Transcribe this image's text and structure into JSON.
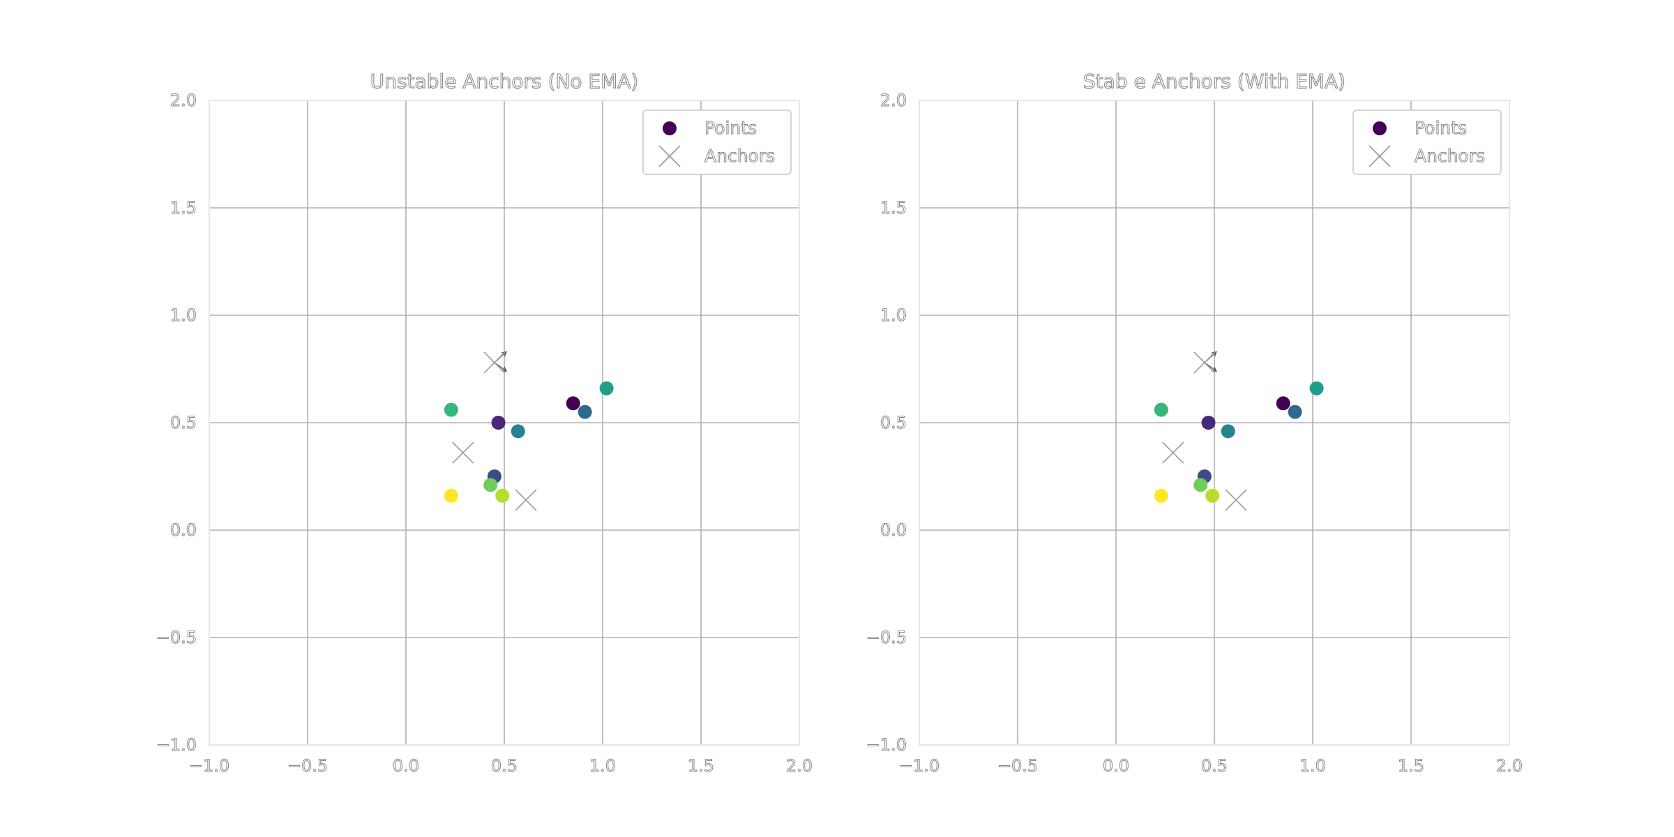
{
  "chart_data": [
    {
      "type": "scatter",
      "title": "Unstable Anchors (No EMA)",
      "xlim": [
        -1.0,
        2.0
      ],
      "ylim": [
        -1.0,
        2.0
      ],
      "x_ticks": [
        "−1.0",
        "−0.5",
        "0.0",
        "0.5",
        "1.0",
        "1.5",
        "2.0"
      ],
      "y_ticks": [
        "−1.0",
        "−0.5",
        "0.0",
        "0.5",
        "1.0",
        "1.5",
        "2.0"
      ],
      "grid": true,
      "legend": {
        "position": "top-right",
        "entries": [
          "Points",
          "Anchors"
        ]
      },
      "series": [
        {
          "name": "Points",
          "marker": "circle",
          "colormap": "viridis",
          "points": [
            {
              "x": 0.85,
              "y": 0.59,
              "color": "#440154"
            },
            {
              "x": 0.47,
              "y": 0.5,
              "color": "#482878"
            },
            {
              "x": 0.45,
              "y": 0.25,
              "color": "#3e4a89"
            },
            {
              "x": 0.91,
              "y": 0.55,
              "color": "#31688e"
            },
            {
              "x": 0.57,
              "y": 0.46,
              "color": "#26828e"
            },
            {
              "x": 1.02,
              "y": 0.66,
              "color": "#1f9e89"
            },
            {
              "x": 0.23,
              "y": 0.56,
              "color": "#35b779"
            },
            {
              "x": 0.43,
              "y": 0.21,
              "color": "#6ece58"
            },
            {
              "x": 0.49,
              "y": 0.16,
              "color": "#b5de2b"
            },
            {
              "x": 0.23,
              "y": 0.16,
              "color": "#fde725"
            }
          ]
        },
        {
          "name": "Anchors",
          "marker": "x",
          "points": [
            {
              "x": 0.45,
              "y": 0.78
            },
            {
              "x": 0.29,
              "y": 0.36
            },
            {
              "x": 0.61,
              "y": 0.14
            }
          ]
        }
      ],
      "annotations": [
        {
          "type": "arrow",
          "from": [
            0.45,
            0.78
          ],
          "to": [
            0.51,
            0.83
          ]
        },
        {
          "type": "arrow",
          "from": [
            0.45,
            0.78
          ],
          "to": [
            0.51,
            0.74
          ]
        }
      ]
    },
    {
      "type": "scatter",
      "title": "Stab e Anchors (With EMA)",
      "xlim": [
        -1.0,
        2.0
      ],
      "ylim": [
        -1.0,
        2.0
      ],
      "x_ticks": [
        "−1.0",
        "−0.5",
        "0.0",
        "0.5",
        "1.0",
        "1.5",
        "2.0"
      ],
      "y_ticks": [
        "−1.0",
        "−0.5",
        "0.0",
        "0.5",
        "1.0",
        "1.5",
        "2.0"
      ],
      "grid": true,
      "legend": {
        "position": "top-right",
        "entries": [
          "Points",
          "Anchors"
        ]
      },
      "series": [
        {
          "name": "Points",
          "marker": "circle",
          "colormap": "viridis",
          "points": [
            {
              "x": 0.85,
              "y": 0.59,
              "color": "#440154"
            },
            {
              "x": 0.47,
              "y": 0.5,
              "color": "#482878"
            },
            {
              "x": 0.45,
              "y": 0.25,
              "color": "#3e4a89"
            },
            {
              "x": 0.91,
              "y": 0.55,
              "color": "#31688e"
            },
            {
              "x": 0.57,
              "y": 0.46,
              "color": "#26828e"
            },
            {
              "x": 1.02,
              "y": 0.66,
              "color": "#1f9e89"
            },
            {
              "x": 0.23,
              "y": 0.56,
              "color": "#35b779"
            },
            {
              "x": 0.43,
              "y": 0.21,
              "color": "#6ece58"
            },
            {
              "x": 0.49,
              "y": 0.16,
              "color": "#b5de2b"
            },
            {
              "x": 0.23,
              "y": 0.16,
              "color": "#fde725"
            }
          ]
        },
        {
          "name": "Anchors",
          "marker": "x",
          "points": [
            {
              "x": 0.45,
              "y": 0.78
            },
            {
              "x": 0.29,
              "y": 0.36
            },
            {
              "x": 0.61,
              "y": 0.14
            }
          ]
        }
      ],
      "annotations": [
        {
          "type": "arrow",
          "from": [
            0.45,
            0.78
          ],
          "to": [
            0.51,
            0.83
          ]
        },
        {
          "type": "arrow",
          "from": [
            0.45,
            0.78
          ],
          "to": [
            0.51,
            0.74
          ]
        }
      ]
    }
  ]
}
